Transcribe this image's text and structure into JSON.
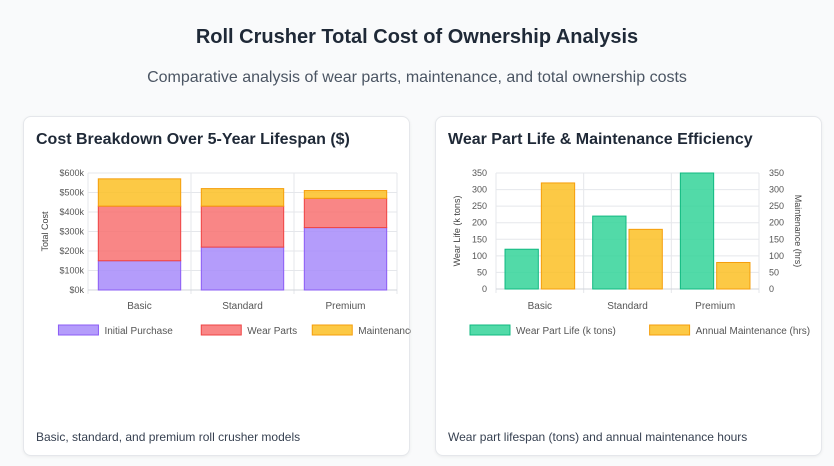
{
  "header": {
    "title": "Roll Crusher Total Cost of Ownership Analysis",
    "subtitle": "Comparative analysis of wear parts, maintenance, and total ownership costs"
  },
  "cards": {
    "left": {
      "title": "Cost Breakdown Over 5-Year Lifespan ($)",
      "note": "Basic, standard, and premium roll crusher models"
    },
    "right": {
      "title": "Wear Part Life & Maintenance Efficiency",
      "note": "Wear part lifespan (tons) and annual maintenance hours"
    }
  },
  "chart_data": [
    {
      "type": "bar",
      "stacked": true,
      "title": "Cost Breakdown Over 5-Year Lifespan ($)",
      "categories": [
        "Basic",
        "Standard",
        "Premium"
      ],
      "ylabel": "Total Cost",
      "ylim": [
        0,
        600
      ],
      "yticks": [
        0,
        100,
        200,
        300,
        400,
        500,
        600
      ],
      "ytick_labels": [
        "$0k",
        "$100k",
        "$200k",
        "$300k",
        "$400k",
        "$500k",
        "$600k"
      ],
      "series": [
        {
          "name": "Initial Purchase",
          "values": [
            150,
            220,
            320
          ],
          "color": "#a78bfa",
          "border": "#8b5cf6"
        },
        {
          "name": "Wear Parts",
          "values": [
            280,
            210,
            150
          ],
          "color": "#f87171",
          "border": "#ef4444"
        },
        {
          "name": "Maintenance",
          "values": [
            140,
            90,
            40
          ],
          "color": "#fbbf24",
          "border": "#f59e0b"
        }
      ]
    },
    {
      "type": "bar",
      "stacked": false,
      "title": "Wear Part Life & Maintenance Efficiency",
      "categories": [
        "Basic",
        "Standard",
        "Premium"
      ],
      "ylabel": "Wear Life (k tons)",
      "y2label": "Maintenance (hrs)",
      "ylim": [
        0,
        350
      ],
      "yticks": [
        0,
        50,
        100,
        150,
        200,
        250,
        300,
        350
      ],
      "ytick_labels": [
        "0",
        "50",
        "100",
        "150",
        "200",
        "250",
        "300",
        "350"
      ],
      "y2ticks": [
        0,
        50,
        100,
        150,
        200,
        250,
        300,
        350
      ],
      "y2tick_labels": [
        "0",
        "50",
        "100",
        "150",
        "200",
        "250",
        "300",
        "350"
      ],
      "series": [
        {
          "name": "Wear Part Life (k tons)",
          "values": [
            120,
            220,
            350
          ],
          "color": "#34d399",
          "border": "#10b981"
        },
        {
          "name": "Annual Maintenance (hrs)",
          "values": [
            320,
            180,
            80
          ],
          "color": "#fbbf24",
          "border": "#f59e0b"
        }
      ]
    }
  ]
}
